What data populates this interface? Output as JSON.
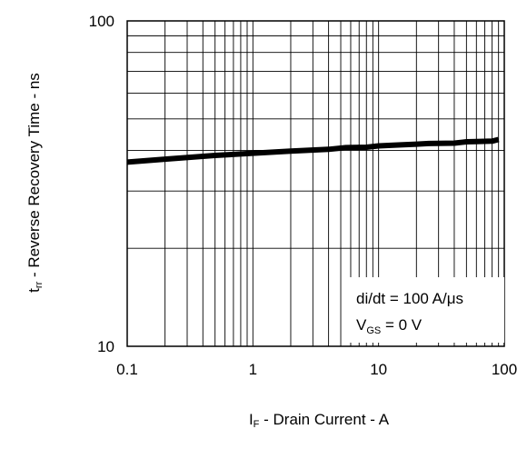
{
  "chart_data": {
    "type": "line",
    "xscale": "log",
    "yscale": "log",
    "xlim": [
      0.1,
      100
    ],
    "ylim": [
      10,
      100
    ],
    "grid": true,
    "xticks": [
      "0.1",
      "1",
      "10",
      "100"
    ],
    "yticks": [
      "10",
      "100"
    ],
    "xlabel": {
      "main": "I",
      "sub": "F",
      "rest": " - Drain Current - A"
    },
    "ylabel": {
      "main": "t",
      "sub": "rr",
      "rest": " - Reverse Recovery Time - ns"
    },
    "annotations": [
      {
        "text": "di/dt = 100 A/",
        "mu": "μ",
        "tail": "s"
      },
      {
        "main": "V",
        "sub": "GS",
        "rest": " = 0 V"
      }
    ],
    "series": [
      {
        "x": [
          0.1,
          0.2,
          0.5,
          1,
          2,
          4,
          5.5,
          8,
          10,
          15,
          20,
          25,
          40,
          50,
          60,
          80,
          90
        ],
        "y": [
          36.8,
          37.6,
          38.6,
          39.2,
          39.8,
          40.3,
          40.8,
          40.9,
          41.3,
          41.6,
          41.8,
          42.0,
          42.1,
          42.5,
          42.6,
          42.7,
          43.2
        ]
      }
    ]
  }
}
